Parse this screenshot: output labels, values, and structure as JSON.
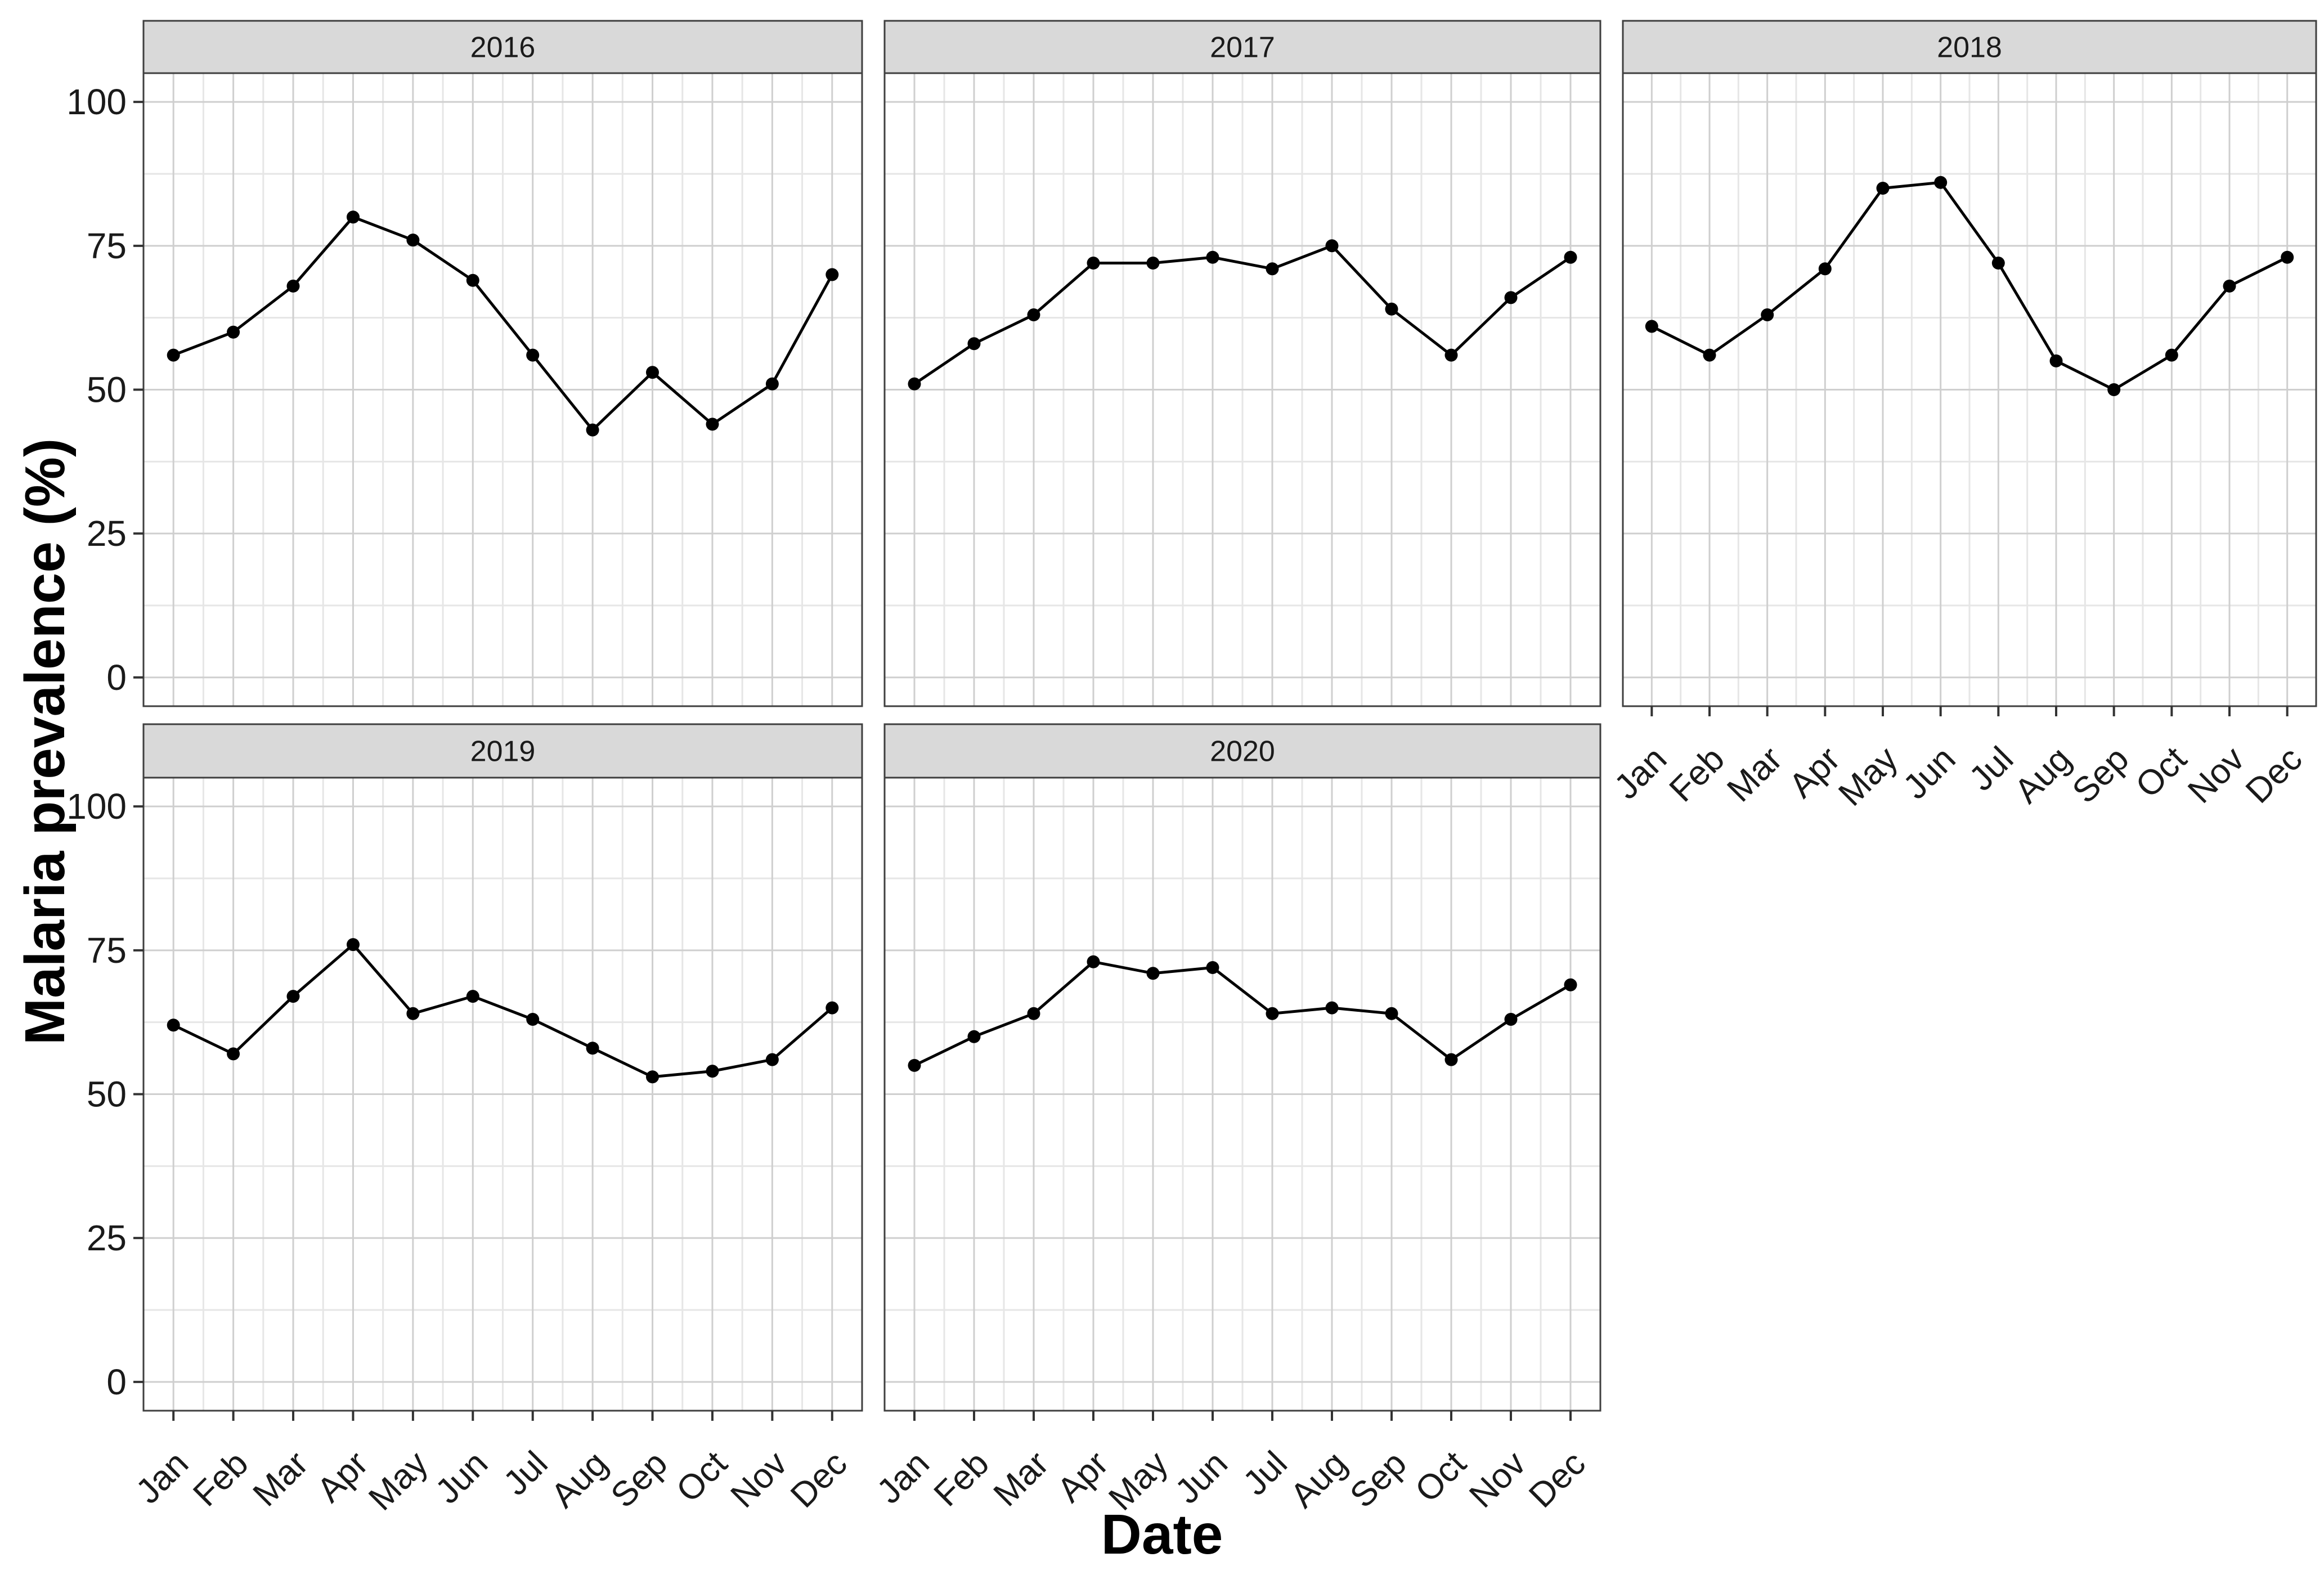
{
  "figure": {
    "y_axis_title": "Malaria prevalence (%)",
    "x_axis_title": "Date"
  },
  "chart_data": {
    "type": "line",
    "title": "",
    "xlabel": "Date",
    "ylabel": "Malaria prevalence (%)",
    "facet_by": "year",
    "facet_layout": {
      "rows": 2,
      "cols": 3,
      "order": [
        "2016",
        "2017",
        "2018",
        "2019",
        "2020"
      ]
    },
    "categories": [
      "Jan",
      "Feb",
      "Mar",
      "Apr",
      "May",
      "Jun",
      "Jul",
      "Aug",
      "Sep",
      "Oct",
      "Nov",
      "Dec"
    ],
    "series": [
      {
        "name": "2016",
        "values": [
          56,
          60,
          68,
          80,
          76,
          69,
          56,
          43,
          53,
          44,
          51,
          70
        ]
      },
      {
        "name": "2017",
        "values": [
          51,
          58,
          63,
          72,
          72,
          73,
          71,
          75,
          64,
          56,
          66,
          73
        ]
      },
      {
        "name": "2018",
        "values": [
          61,
          56,
          63,
          71,
          85,
          86,
          72,
          55,
          50,
          56,
          68,
          73
        ]
      },
      {
        "name": "2019",
        "values": [
          62,
          57,
          67,
          76,
          64,
          67,
          63,
          58,
          53,
          54,
          56,
          65
        ]
      },
      {
        "name": "2020",
        "values": [
          55,
          60,
          64,
          73,
          71,
          72,
          64,
          65,
          64,
          56,
          63,
          69
        ]
      }
    ],
    "ylim": [
      0,
      100
    ],
    "y_ticks": [
      0,
      25,
      50,
      75,
      100
    ],
    "y_minor_ticks": [
      12.5,
      37.5,
      62.5,
      87.5
    ],
    "grid": "major-and-minor",
    "legend": "none",
    "point_marker": "filled-circle"
  },
  "style": {
    "line_color": "#000000",
    "point_color": "#000000",
    "strip_bg": "#d9d9d9",
    "strip_text_color": "#1a1a1a",
    "panel_bg": "#ffffff",
    "panel_border": "#3f3f3f",
    "grid_major": "#cfcfcf",
    "grid_minor": "#e6e6e6",
    "tick_color": "#333333",
    "tick_label_color": "#1a1a1a"
  }
}
